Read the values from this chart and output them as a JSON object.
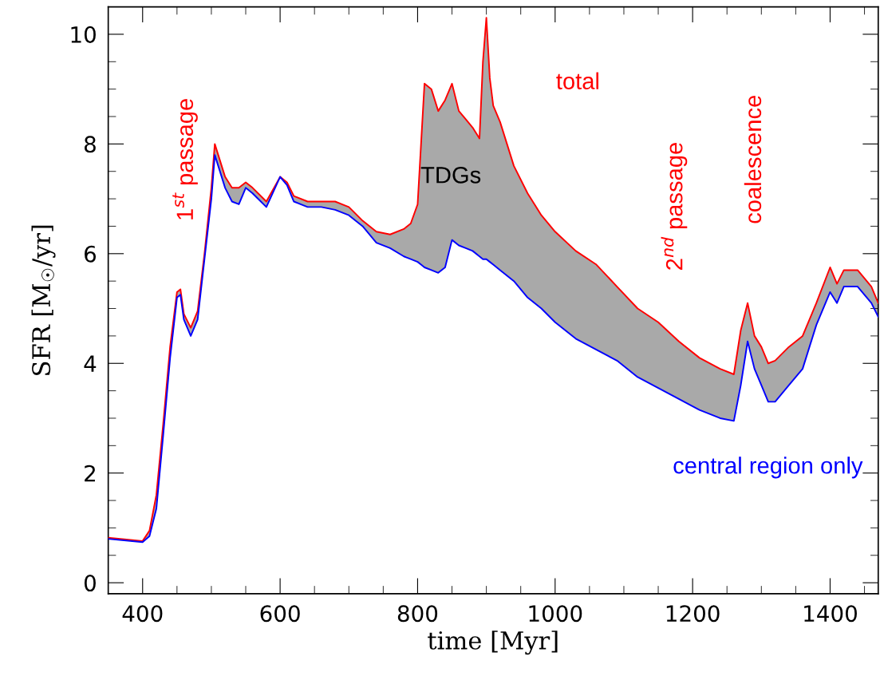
{
  "chart_data": {
    "type": "line",
    "xlabel": "time [Myr]",
    "ylabel": "SFR [M$_{☉}$/yr]",
    "x": [
      350,
      400,
      410,
      420,
      430,
      440,
      450,
      455,
      460,
      470,
      480,
      490,
      500,
      505,
      510,
      520,
      530,
      540,
      550,
      560,
      580,
      600,
      610,
      620,
      640,
      660,
      680,
      700,
      720,
      740,
      760,
      780,
      790,
      800,
      805,
      810,
      820,
      830,
      840,
      850,
      860,
      870,
      880,
      890,
      895,
      900,
      905,
      910,
      920,
      940,
      960,
      980,
      1000,
      1030,
      1060,
      1090,
      1120,
      1150,
      1180,
      1210,
      1240,
      1260,
      1270,
      1280,
      1290,
      1300,
      1310,
      1320,
      1340,
      1360,
      1380,
      1400,
      1410,
      1420,
      1440,
      1460,
      1470
    ],
    "series": [
      {
        "type": "area",
        "name": "total",
        "color": "#ff0000",
        "values": [
          0.82,
          0.76,
          0.95,
          1.6,
          2.9,
          4.3,
          5.3,
          5.35,
          4.9,
          4.65,
          4.95,
          6.0,
          7.2,
          8.0,
          7.8,
          7.4,
          7.2,
          7.2,
          7.3,
          7.2,
          6.95,
          7.4,
          7.3,
          7.05,
          6.95,
          6.95,
          6.95,
          6.85,
          6.6,
          6.4,
          6.35,
          6.45,
          6.55,
          6.9,
          8.0,
          9.1,
          9.0,
          8.6,
          8.8,
          9.1,
          8.6,
          8.45,
          8.3,
          8.1,
          9.5,
          10.3,
          9.2,
          8.7,
          8.4,
          7.6,
          7.1,
          6.7,
          6.4,
          6.05,
          5.8,
          5.4,
          5.0,
          4.75,
          4.4,
          4.1,
          3.9,
          3.8,
          4.6,
          5.1,
          4.5,
          4.3,
          4.0,
          4.05,
          4.3,
          4.5,
          5.1,
          5.75,
          5.45,
          5.7,
          5.7,
          5.4,
          5.1
        ]
      },
      {
        "name": "central region only",
        "color": "#0000ff",
        "values": [
          0.8,
          0.74,
          0.85,
          1.35,
          2.7,
          4.1,
          5.2,
          5.25,
          4.8,
          4.5,
          4.8,
          5.9,
          7.0,
          7.8,
          7.6,
          7.2,
          6.95,
          6.9,
          7.2,
          7.1,
          6.85,
          7.4,
          7.25,
          6.95,
          6.85,
          6.85,
          6.8,
          6.7,
          6.5,
          6.2,
          6.1,
          5.95,
          5.9,
          5.85,
          5.8,
          5.75,
          5.7,
          5.65,
          5.75,
          6.25,
          6.15,
          6.1,
          6.05,
          5.95,
          5.9,
          5.9,
          5.85,
          5.8,
          5.7,
          5.5,
          5.2,
          5.0,
          4.75,
          4.45,
          4.25,
          4.05,
          3.75,
          3.55,
          3.35,
          3.15,
          3.0,
          2.95,
          3.6,
          4.4,
          3.9,
          3.6,
          3.3,
          3.3,
          3.6,
          3.9,
          4.7,
          5.3,
          5.1,
          5.4,
          5.4,
          5.1,
          4.85
        ]
      }
    ],
    "annotations": [
      "1$^{st}$ passage",
      "TDGs",
      "2$^{nd}$ passage",
      "coalescence"
    ],
    "xlim": [
      350,
      1470
    ],
    "ylim": [
      -0.2,
      10.5
    ],
    "xticks": [
      400,
      {
        "value": 450,
        "label": null
      },
      {
        "value": 500,
        "label": null
      },
      {
        "value": 550,
        "label": null
      },
      600,
      {
        "value": 650,
        "label": null
      },
      {
        "value": 700,
        "label": null
      },
      {
        "value": 750,
        "label": null
      },
      800,
      {
        "value": 850,
        "label": null
      },
      {
        "value": 900,
        "label": null
      },
      {
        "value": 950,
        "label": null
      },
      1000,
      {
        "value": 1050,
        "label": null
      },
      {
        "value": 1100,
        "label": null
      },
      {
        "value": 1150,
        "label": null
      },
      1200,
      {
        "value": 1250,
        "label": null
      },
      {
        "value": 1300,
        "label": null
      },
      {
        "value": 1350,
        "label": null
      },
      1400,
      {
        "value": 1450,
        "label": null
      }
    ],
    "yticks": [
      0,
      {
        "value": 0.5,
        "label": null
      },
      {
        "value": 1,
        "label": null
      },
      {
        "value": 1.5,
        "label": null
      },
      2,
      {
        "value": 2.5,
        "label": null
      },
      {
        "value": 3,
        "label": null
      },
      {
        "value": 3.5,
        "label": null
      },
      4,
      {
        "value": 4.5,
        "label": null
      },
      {
        "value": 5,
        "label": null
      },
      {
        "value": 5.5,
        "label": null
      },
      6,
      {
        "value": 6.5,
        "label": null
      },
      {
        "value": 7,
        "label": null
      },
      {
        "value": 7.5,
        "label": null
      },
      8,
      {
        "value": 8.5,
        "label": null
      },
      {
        "value": 9,
        "label": null
      },
      {
        "value": 9.5,
        "label": null
      },
      10
    ],
    "marker": "none",
    "line_style": "solid"
  }
}
